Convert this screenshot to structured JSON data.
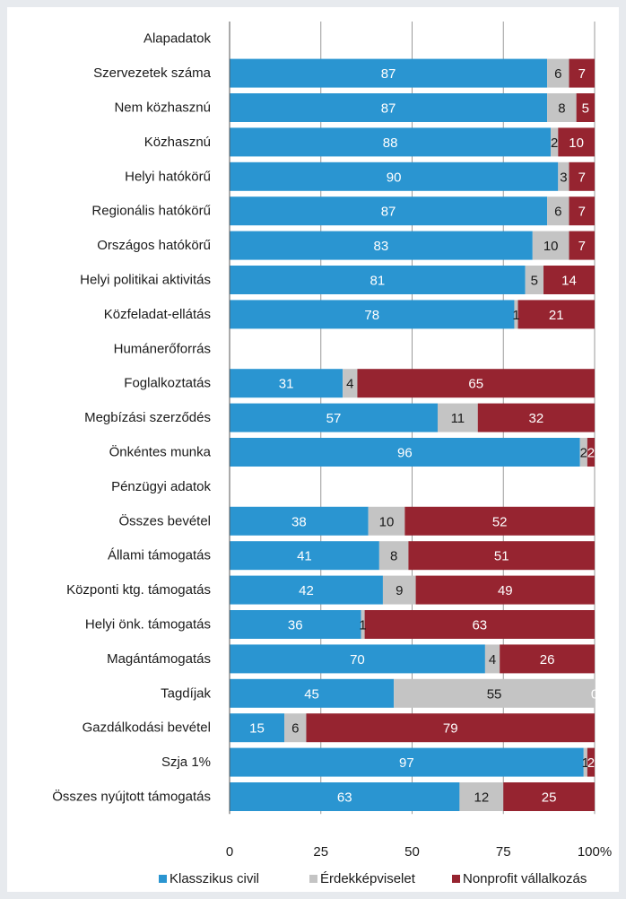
{
  "chart_data": {
    "type": "bar",
    "orientation": "horizontal",
    "stacked": true,
    "percent_stacked": true,
    "categories": [
      "Alapadatok",
      "Szervezetek száma",
      "Nem közhasznú",
      "Közhasznú",
      "Helyi hatókörű",
      "Regionális hatókörű",
      "Országos hatókörű",
      "Helyi politikai aktivitás",
      "Közfeladat-ellátás",
      "Humánerőforrás",
      "Foglalkoztatás",
      "Megbízási szerződés",
      "Önkéntes munka",
      "Pénzügyi adatok",
      "Összes bevétel",
      "Állami támogatás",
      "Központi ktg. támogatás",
      "Helyi önk. támogatás",
      "Magántámogatás",
      "Tagdíjak",
      "Gazdálkodási bevétel",
      "Szja 1%",
      "Összes nyújtott támogatás"
    ],
    "series": [
      {
        "name": "Klasszikus civil",
        "color": "#2a95d1",
        "label_color": "#ffffff",
        "values": [
          null,
          87,
          87,
          88,
          90,
          87,
          83,
          81,
          78,
          null,
          31,
          57,
          96,
          null,
          38,
          41,
          42,
          36,
          70,
          45,
          15,
          97,
          63
        ]
      },
      {
        "name": "Érdekképviselet",
        "color": "#c4c4c4",
        "label_color": "#1a1a1a",
        "values": [
          null,
          6,
          8,
          2,
          3,
          6,
          10,
          5,
          1,
          null,
          4,
          11,
          2,
          null,
          10,
          8,
          9,
          1,
          4,
          55,
          6,
          1,
          12
        ]
      },
      {
        "name": "Nonprofit vállalkozás",
        "color": "#962430",
        "label_color": "#ffffff",
        "values": [
          null,
          7,
          5,
          10,
          7,
          7,
          7,
          14,
          21,
          null,
          65,
          32,
          2,
          null,
          52,
          51,
          49,
          63,
          26,
          0,
          79,
          2,
          25
        ]
      }
    ],
    "xlim": [
      0,
      100
    ],
    "xticks": [
      "0",
      "25",
      "50",
      "75",
      "100%"
    ],
    "xtick_values": [
      0,
      25,
      50,
      75,
      100
    ],
    "grid": true,
    "legend_position": "bottom"
  }
}
